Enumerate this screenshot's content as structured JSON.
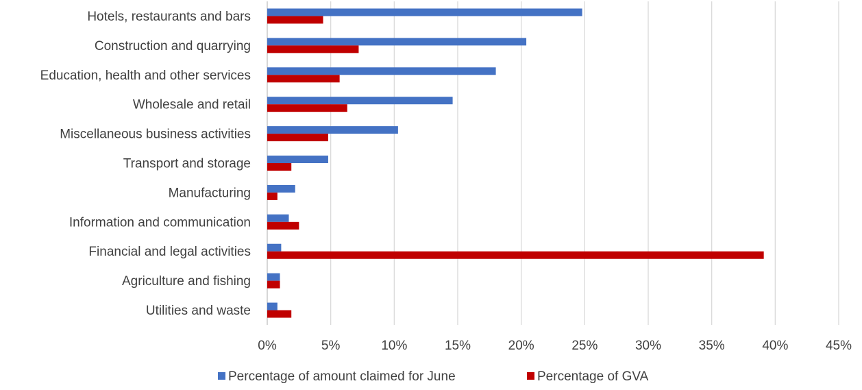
{
  "chart_data": {
    "type": "bar",
    "orientation": "horizontal",
    "categories": [
      "Hotels, restaurants and bars",
      "Construction and quarrying",
      "Education, health and other services",
      "Wholesale and retail",
      "Miscellaneous business activities",
      "Transport and storage",
      "Manufacturing",
      "Information and communication",
      "Financial and legal activities",
      "Agriculture and fishing",
      "Utilities and waste"
    ],
    "series": [
      {
        "name": "Percentage of amount claimed for June",
        "color": "#4472c4",
        "values": [
          24.8,
          20.4,
          18.0,
          14.6,
          10.3,
          4.8,
          2.2,
          1.7,
          1.1,
          1.0,
          0.8
        ]
      },
      {
        "name": "Percentage of GVA",
        "color": "#c00000",
        "values": [
          4.4,
          7.2,
          5.7,
          6.3,
          4.8,
          1.9,
          0.8,
          2.5,
          39.1,
          1.0,
          1.9
        ]
      }
    ],
    "xlim": [
      0,
      45
    ],
    "xticks": [
      "0%",
      "5%",
      "10%",
      "15%",
      "20%",
      "25%",
      "30%",
      "35%",
      "40%",
      "45%"
    ],
    "grid": true,
    "legend": "bottom",
    "title": "",
    "xlabel": "",
    "ylabel": ""
  }
}
